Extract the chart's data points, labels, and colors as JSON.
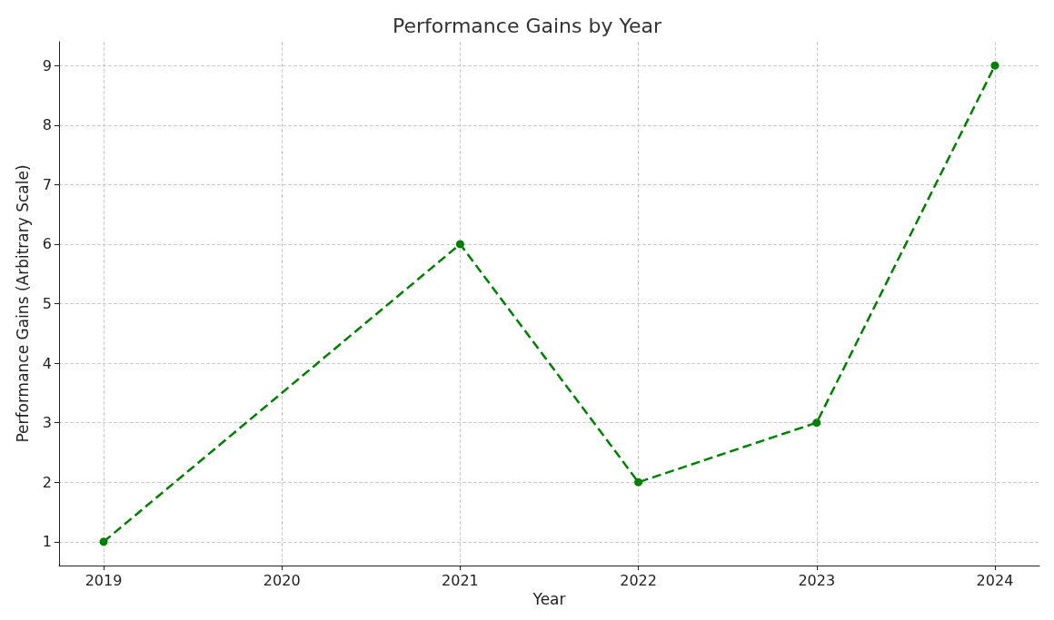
{
  "chart_data": {
    "type": "line",
    "title": "Performance Gains by Year",
    "xlabel": "Year",
    "ylabel": "Performance Gains (Arbitrary Scale)",
    "x": [
      2019,
      2021,
      2022,
      2023,
      2024
    ],
    "series": [
      {
        "color": "#008000",
        "values": [
          1,
          6,
          2,
          3,
          9
        ]
      }
    ],
    "xlim": [
      2018.75,
      2024.25
    ],
    "xticks": [
      2019,
      2020,
      2021,
      2022,
      2023,
      2024
    ],
    "ylim": [
      0.6,
      9.4
    ],
    "yticks": [
      1,
      2,
      3,
      4,
      5,
      6,
      7,
      8,
      9
    ],
    "grid": true,
    "marker": "circle",
    "line_style": "dashed"
  }
}
